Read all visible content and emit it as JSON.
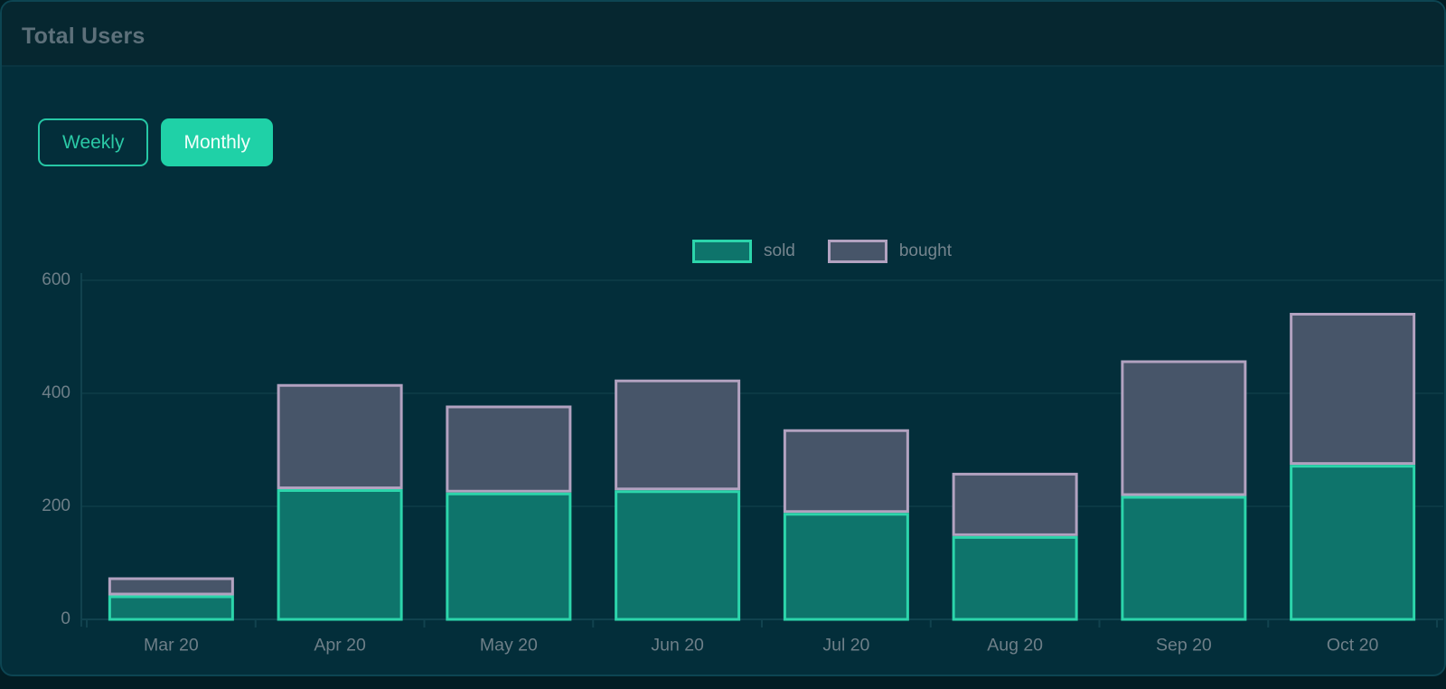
{
  "window": {
    "title": "Total Users"
  },
  "toolbar": {
    "weekly_label": "Weekly",
    "monthly_label": "Monthly",
    "active": "Monthly"
  },
  "colors": {
    "card_background": "#032e3a",
    "header_background": "#062730",
    "card_border": "#0d4552",
    "accent_teal": "#1fd1a7",
    "sold_fill": "#0e746b",
    "sold_border": "#2cd5ab",
    "bought_fill": "#475569",
    "bought_border": "#b2a2c0",
    "axis_text": "#6e7f88",
    "grid_line": "#0b3944",
    "axis_line": "#11424e"
  },
  "chart_data": {
    "type": "bar",
    "stacked": true,
    "title": "Total Users",
    "categories": [
      "Mar 20",
      "Apr 20",
      "May 20",
      "Jun 20",
      "Jul 20",
      "Aug 20",
      "Sep 20",
      "Oct 20"
    ],
    "series": [
      {
        "name": "sold",
        "values": [
          40,
          228,
          222,
          226,
          186,
          145,
          216,
          271
        ]
      },
      {
        "name": "bought",
        "values": [
          32,
          186,
          154,
          196,
          148,
          112,
          240,
          269
        ]
      }
    ],
    "stack_totals": [
      72,
      414,
      376,
      422,
      334,
      257,
      456,
      540
    ],
    "xlabel": "",
    "ylabel": "",
    "ylim": [
      0,
      600
    ],
    "yticks": [
      0,
      200,
      400,
      600
    ],
    "grid": true,
    "legend_position": "top-center"
  }
}
